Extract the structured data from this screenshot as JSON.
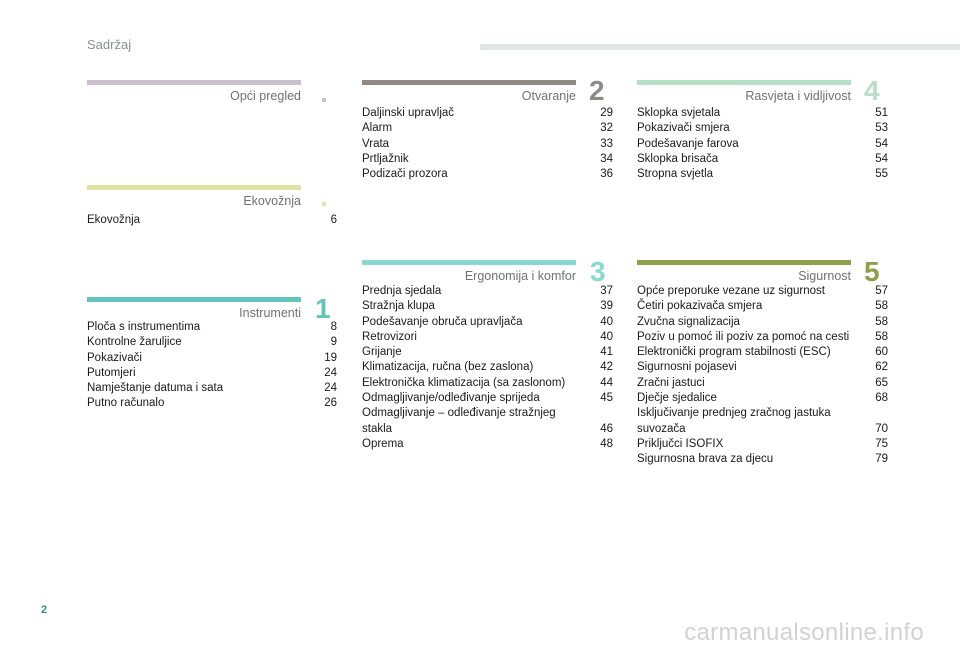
{
  "header": {
    "title": "Sadržaj",
    "bar_color": "#dfe6e3"
  },
  "sections": {
    "opci": {
      "title": "Opći pregled",
      "number": "",
      "color": "#c9c1cc",
      "entries": []
    },
    "eko": {
      "title": "Ekovožnja",
      "number": "",
      "color": "#dfe4a6",
      "entries": [
        {
          "t": "Ekovožnja",
          "p": "6"
        }
      ]
    },
    "instr": {
      "title": "Instrumenti",
      "number": "1",
      "color": "#64c3ba",
      "entries": [
        {
          "t": "Ploča s instrumentima",
          "p": "8"
        },
        {
          "t": "Kontrolne žaruljice",
          "p": "9"
        },
        {
          "t": "Pokazivači",
          "p": "19"
        },
        {
          "t": "Putomjeri",
          "p": "24"
        },
        {
          "t": "Namještanje datuma i sata",
          "p": "24"
        },
        {
          "t": "Putno računalo",
          "p": "26"
        }
      ]
    },
    "otv": {
      "title": "Otvaranje",
      "number": "2",
      "color": "#8f8a86",
      "entries": [
        {
          "t": "Daljinski upravljač",
          "p": "29"
        },
        {
          "t": "Alarm",
          "p": "32"
        },
        {
          "t": "Vrata",
          "p": "33"
        },
        {
          "t": "Prtljažnik",
          "p": "34"
        },
        {
          "t": "Podizači prozora",
          "p": "36"
        }
      ]
    },
    "ergo": {
      "title": "Ergonomija i komfor",
      "number": "3",
      "color": "#8ad8cf",
      "entries": [
        {
          "t": "Prednja sjedala",
          "p": "37"
        },
        {
          "t": "Stražnja klupa",
          "p": "39"
        },
        {
          "t": "Podešavanje obruča upravljača",
          "p": "40"
        },
        {
          "t": "Retrovizori",
          "p": "40"
        },
        {
          "t": "Grijanje",
          "p": "41"
        },
        {
          "t": "Klimatizacija, ručna (bez zaslona)",
          "p": "42"
        },
        {
          "t": "Elektronička klimatizacija (sa zaslonom)",
          "p": "44"
        },
        {
          "t": "Odmagljivanje/odleđivanje sprijeda",
          "p": "45"
        },
        {
          "t": "Odmagljivanje – odleđivanje stražnjeg\nstakla",
          "p": "46"
        },
        {
          "t": "Oprema",
          "p": "48"
        }
      ]
    },
    "rasv": {
      "title": "Rasvjeta i vidljivost",
      "number": "4",
      "color": "#b7dfc6",
      "entries": [
        {
          "t": "Sklopka svjetala",
          "p": "51"
        },
        {
          "t": "Pokazivači smjera",
          "p": "53"
        },
        {
          "t": "Podešavanje farova",
          "p": "54"
        },
        {
          "t": "Sklopka brisača",
          "p": "54"
        },
        {
          "t": "Stropna svjetla",
          "p": "55"
        }
      ]
    },
    "sig": {
      "title": "Sigurnost",
      "number": "5",
      "color": "#8ea04e",
      "entries": [
        {
          "t": "Opće preporuke vezane uz sigurnost",
          "p": "57"
        },
        {
          "t": "Četiri pokazivača smjera",
          "p": "58"
        },
        {
          "t": "Zvučna signalizacija",
          "p": "58"
        },
        {
          "t": "Poziv u pomoć ili poziv za pomoć na cesti",
          "p": "58"
        },
        {
          "t": "Elektronički program stabilnosti (ESC)",
          "p": "60"
        },
        {
          "t": "Sigurnosni pojasevi",
          "p": "62"
        },
        {
          "t": "Zračni jastuci",
          "p": "65"
        },
        {
          "t": "Dječje sjedalice",
          "p": "68"
        },
        {
          "t": "Isključivanje prednjeg zračnog jastuka\nsuvozača",
          "p": "70"
        },
        {
          "t": "Priključci ISOFIX",
          "p": "75"
        },
        {
          "t": "Sigurnosna brava za djecu",
          "p": "79"
        }
      ]
    }
  },
  "page_number": "2",
  "watermark": "carmanualsonline.info"
}
